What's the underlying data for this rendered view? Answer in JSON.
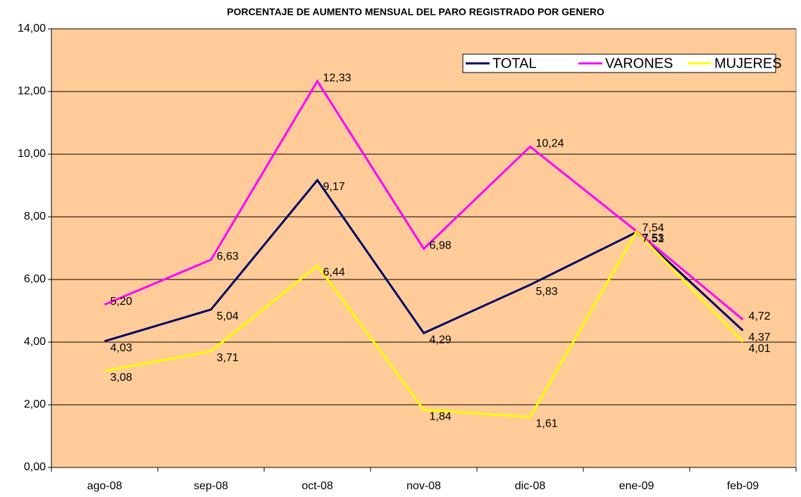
{
  "chart_data": {
    "type": "line",
    "title": "PORCENTAJE DE AUMENTO MENSUAL DEL PARO REGISTRADO POR GENERO",
    "categories": [
      "ago-08",
      "sep-08",
      "oct-08",
      "nov-08",
      "dic-08",
      "ene-09",
      "feb-09"
    ],
    "series": [
      {
        "name": "TOTAL",
        "color": "#000066",
        "values": [
          4.03,
          5.04,
          9.17,
          4.29,
          5.83,
          7.51,
          4.37
        ],
        "value_labels": [
          "4,03",
          "5,04",
          "9,17",
          "4,29",
          "5,83",
          "7,51",
          "4,37"
        ]
      },
      {
        "name": "VARONES",
        "color": "#ff00ff",
        "values": [
          5.2,
          6.63,
          12.33,
          6.98,
          10.24,
          7.54,
          4.72
        ],
        "value_labels": [
          "5,20",
          "6,63",
          "12,33",
          "6,98",
          "10,24",
          "7,54",
          "4,72"
        ]
      },
      {
        "name": "MUJERES",
        "color": "#ffff00",
        "values": [
          3.08,
          3.71,
          6.44,
          1.84,
          1.61,
          7.53,
          4.01
        ],
        "value_labels": [
          "3,08",
          "3,71",
          "6,44",
          "1,84",
          "1,61",
          "7,53",
          "4,01"
        ]
      }
    ],
    "ylim": [
      0,
      14
    ],
    "yticks": [
      {
        "value": 0,
        "label": "0,00"
      },
      {
        "value": 2,
        "label": "2,00"
      },
      {
        "value": 4,
        "label": "4,00"
      },
      {
        "value": 6,
        "label": "6,00"
      },
      {
        "value": 8,
        "label": "8,00"
      },
      {
        "value": 10,
        "label": "10,00"
      },
      {
        "value": 12,
        "label": "12,00"
      },
      {
        "value": 14,
        "label": "14,00"
      }
    ],
    "grid": true,
    "legend": "upper right",
    "plot_background": "#ffcc99"
  }
}
